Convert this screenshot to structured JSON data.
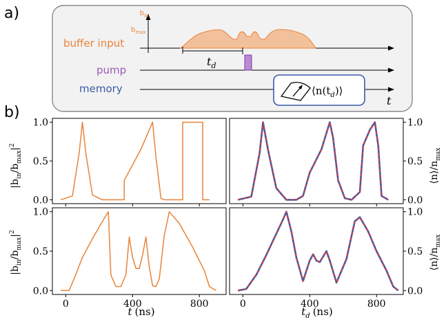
{
  "panel_a": {
    "label": "a)",
    "buffer_input_label": "buffer input",
    "pump_label": "pump",
    "memory_label": "memory",
    "b_in_label": "b",
    "b_in_sub": "in",
    "b_max_label": "b",
    "b_max_sub": "max",
    "td_label": "t",
    "td_sub": "d",
    "t_axis_label": "t",
    "measurement_label": "⟨n(t",
    "measurement_sub": "d",
    "measurement_close": ")⟩",
    "colors": {
      "buffer": "#e8833a",
      "pump": "#9b59b6",
      "memory": "#3a5aa6",
      "box_border": "#888888",
      "box_fill": "#f2f2f2"
    }
  },
  "panel_b": {
    "label": "b)",
    "left_ylabel_main": "|b",
    "left_ylabel_in": "in",
    "left_ylabel_slash": "/b",
    "left_ylabel_max": "max",
    "left_ylabel_close": "|",
    "left_ylabel_exp": "2",
    "right_ylabel_main": "⟨n⟩/n",
    "right_ylabel_sub": "max",
    "left_xlabel_var": "t",
    "left_xlabel_unit": "(ns)",
    "right_xlabel_var": "t",
    "right_xlabel_sub": "d",
    "right_xlabel_unit": "(ns)",
    "yticks": [
      "0.0",
      "0.5",
      "1.0"
    ],
    "xticks": [
      "0",
      "400",
      "800"
    ],
    "colors": {
      "orange": "#e8833a",
      "blue": "#3a5aa6",
      "red": "#e23b3b"
    }
  },
  "chart_data": [
    {
      "type": "line",
      "panel": "top-left",
      "xlim": [
        -80,
        960
      ],
      "ylim": [
        -0.05,
        1.05
      ],
      "series": [
        {
          "values_note": "",
          "x": [
            -30,
            40,
            80,
            100,
            120,
            160,
            220,
            350,
            350,
            400,
            450,
            500,
            520,
            540,
            570,
            590,
            700,
            700,
            820,
            820,
            860
          ],
          "y": [
            0,
            0.05,
            0.6,
            1.0,
            0.6,
            0.06,
            0,
            0,
            0.25,
            0.45,
            0.65,
            0.9,
            1.0,
            0.55,
            0.02,
            0,
            0,
            1.0,
            1.0,
            0,
            0
          ]
        }
      ]
    },
    {
      "type": "line",
      "panel": "top-right",
      "xlim": [
        -80,
        960
      ],
      "ylim": [
        -0.05,
        1.05
      ],
      "series": [
        {
          "color": "blue",
          "x": [
            -30,
            50,
            100,
            120,
            150,
            200,
            260,
            320,
            360,
            400,
            470,
            520,
            540,
            570,
            610,
            650,
            700,
            720,
            760,
            790,
            810,
            830,
            870
          ],
          "y": [
            0,
            0.04,
            0.6,
            1.0,
            0.65,
            0.15,
            0,
            0,
            0.05,
            0.35,
            0.65,
            1.0,
            0.8,
            0.25,
            0.02,
            0,
            0.1,
            0.7,
            0.9,
            1.0,
            0.7,
            0.05,
            0
          ]
        }
      ]
    },
    {
      "type": "line",
      "panel": "bottom-left",
      "xlim": [
        -80,
        960
      ],
      "ylim": [
        -0.05,
        1.05
      ],
      "series": [
        {
          "x": [
            -30,
            20,
            50,
            100,
            160,
            220,
            255,
            270,
            300,
            330,
            360,
            380,
            400,
            420,
            440,
            460,
            480,
            500,
            520,
            540,
            560,
            590,
            620,
            680,
            760,
            830,
            860,
            900
          ],
          "y": [
            0,
            0,
            0.15,
            0.42,
            0.66,
            0.88,
            1.0,
            0.2,
            0.05,
            0.05,
            0.2,
            0.68,
            0.42,
            0.28,
            0.28,
            0.45,
            0.68,
            0.3,
            0.06,
            0.05,
            0.15,
            0.7,
            1.0,
            0.85,
            0.55,
            0.25,
            0.05,
            0
          ]
        }
      ]
    },
    {
      "type": "line",
      "panel": "bottom-right",
      "xlim": [
        -80,
        960
      ],
      "ylim": [
        -0.05,
        1.05
      ],
      "series": [
        {
          "color": "blue",
          "x": [
            -30,
            20,
            80,
            140,
            200,
            240,
            260,
            290,
            320,
            360,
            400,
            420,
            440,
            460,
            480,
            500,
            520,
            560,
            620,
            670,
            700,
            750,
            800,
            860,
            900,
            930
          ],
          "y": [
            0,
            0.02,
            0.2,
            0.45,
            0.72,
            0.9,
            1.0,
            0.75,
            0.42,
            0.12,
            0.38,
            0.46,
            0.38,
            0.36,
            0.43,
            0.5,
            0.38,
            0.1,
            0.4,
            0.88,
            0.93,
            0.75,
            0.5,
            0.25,
            0.05,
            0
          ]
        }
      ]
    }
  ]
}
